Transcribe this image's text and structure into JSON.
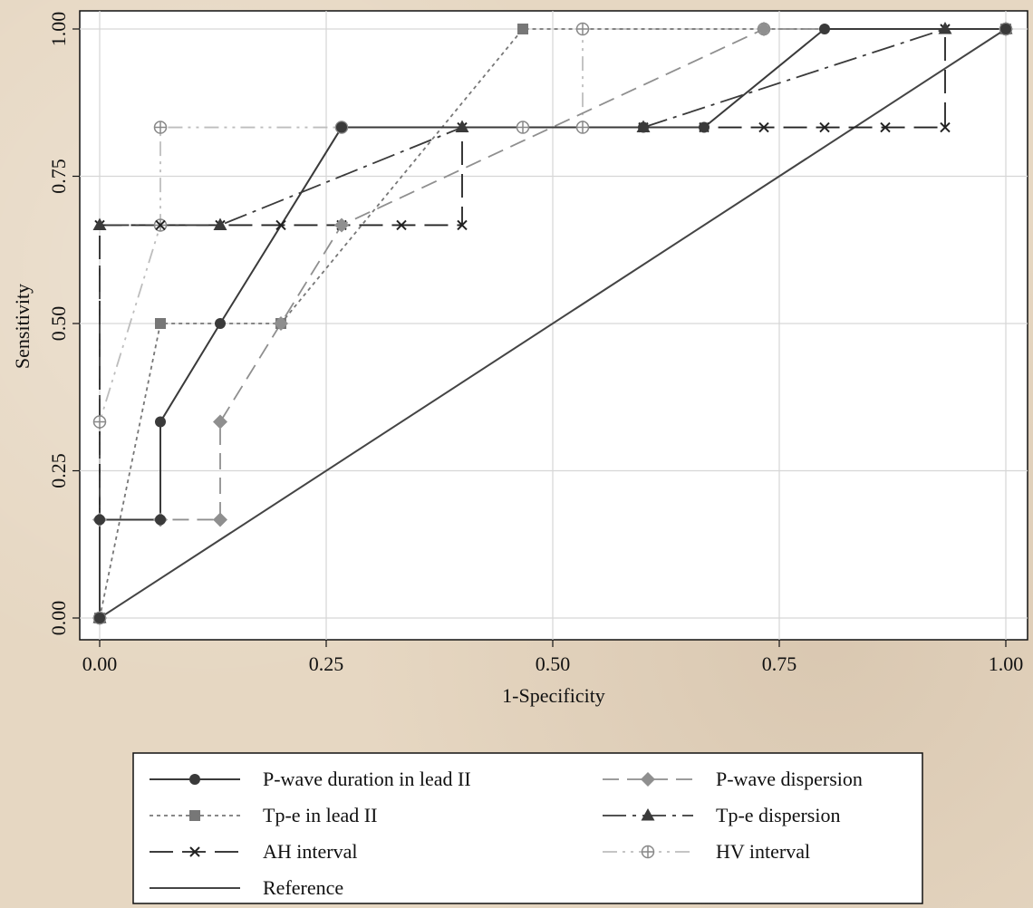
{
  "chart_data": {
    "type": "line",
    "title": "",
    "xlabel": "1-Specificity",
    "ylabel": "Sensitivity",
    "xlim": [
      0,
      1
    ],
    "ylim": [
      0,
      1
    ],
    "x_ticks": [
      "0.00",
      "0.25",
      "0.50",
      "0.75",
      "1.00"
    ],
    "y_ticks": [
      "0.00",
      "0.25",
      "0.50",
      "0.75",
      "1.00"
    ],
    "grid": true,
    "legend_placement": "bottom",
    "series": [
      {
        "name": "P-wave duration in lead II",
        "line_style": "solid",
        "marker": "circle",
        "color": "#3a3a3a",
        "x": [
          0,
          0,
          0.067,
          0.067,
          0.133,
          0.267,
          0.6,
          0.667,
          0.8,
          1.0
        ],
        "y": [
          0,
          0.167,
          0.167,
          0.333,
          0.5,
          0.833,
          0.833,
          0.833,
          1.0,
          1.0
        ]
      },
      {
        "name": "P-wave dispersion",
        "line_style": "dashed",
        "marker": "diamond",
        "color": "#8f8f8f",
        "x": [
          0,
          0,
          0.067,
          0.133,
          0.133,
          0.2,
          0.267,
          0.733,
          1.0
        ],
        "y": [
          0,
          0.167,
          0.167,
          0.167,
          0.333,
          0.5,
          0.667,
          1.0,
          1.0
        ]
      },
      {
        "name": "Tp-e in lead II",
        "line_style": "dotted",
        "marker": "square",
        "color": "#777777",
        "x": [
          0,
          0.067,
          0.2,
          0.467,
          1.0
        ],
        "y": [
          0,
          0.5,
          0.5,
          1.0,
          1.0
        ]
      },
      {
        "name": "Tp-e dispersion",
        "line_style": "longdash-dot",
        "marker": "triangle",
        "color": "#3a3a3a",
        "x": [
          0,
          0,
          0.133,
          0.4,
          0.6,
          0.933,
          1.0
        ],
        "y": [
          0,
          0.667,
          0.667,
          0.833,
          0.833,
          1.0,
          1.0
        ]
      },
      {
        "name": "AH interval",
        "line_style": "longdash",
        "marker": "x",
        "color": "#222222",
        "x": [
          0,
          0,
          0.067,
          0.133,
          0.2,
          0.267,
          0.333,
          0.4,
          0.4,
          0.6,
          0.667,
          0.733,
          0.8,
          0.867,
          0.933,
          0.933,
          1.0
        ],
        "y": [
          0,
          0.667,
          0.667,
          0.667,
          0.667,
          0.667,
          0.667,
          0.667,
          0.833,
          0.833,
          0.833,
          0.833,
          0.833,
          0.833,
          0.833,
          1.0,
          1.0
        ]
      },
      {
        "name": "HV interval",
        "line_style": "dashdotdot",
        "marker": "plus",
        "color": "#bdbdbd",
        "x": [
          0,
          0,
          0.067,
          0.067,
          0.267,
          0.467,
          0.533,
          0.533,
          0.733,
          1.0
        ],
        "y": [
          0,
          0.333,
          0.667,
          0.833,
          0.833,
          0.833,
          0.833,
          1.0,
          1.0,
          1.0
        ]
      },
      {
        "name": "Reference",
        "line_style": "solid",
        "marker": "none",
        "color": "#444444",
        "x": [
          0,
          1
        ],
        "y": [
          0,
          1
        ]
      }
    ]
  }
}
